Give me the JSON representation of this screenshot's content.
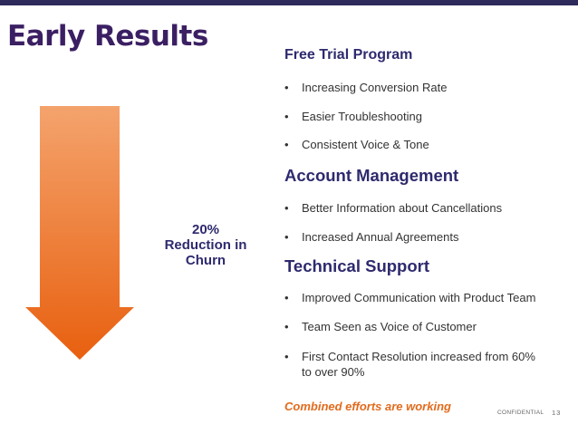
{
  "slide": {
    "title": "Early Results",
    "graphic": {
      "icon": "down-arrow-icon",
      "line1": "20%",
      "line2": "Reduction in",
      "line3": "Churn",
      "colors": {
        "top": "#f4a36d",
        "bottom": "#e8600f"
      }
    },
    "sections": [
      {
        "heading": "Free Trial Program",
        "bullets": [
          "Increasing Conversion Rate",
          "Easier Troubleshooting",
          "Consistent Voice & Tone"
        ]
      },
      {
        "heading": "Account Management",
        "bullets": [
          "Better Information about Cancellations",
          "Increased Annual Agreements"
        ]
      },
      {
        "heading": "Technical Support",
        "bullets": [
          "Improved Communication with Product Team",
          "Team Seen as Voice of Customer",
          "First Contact Resolution increased from 60% to over 90%"
        ]
      }
    ],
    "closing": "Combined efforts are working",
    "footer": {
      "confidential": "CONFIDENTIAL",
      "page": "13"
    },
    "colors": {
      "title": "#3b1f63",
      "heading": "#2e2a6e",
      "accent": "#e26b1d",
      "top_bar": "#2e2a5c"
    }
  }
}
